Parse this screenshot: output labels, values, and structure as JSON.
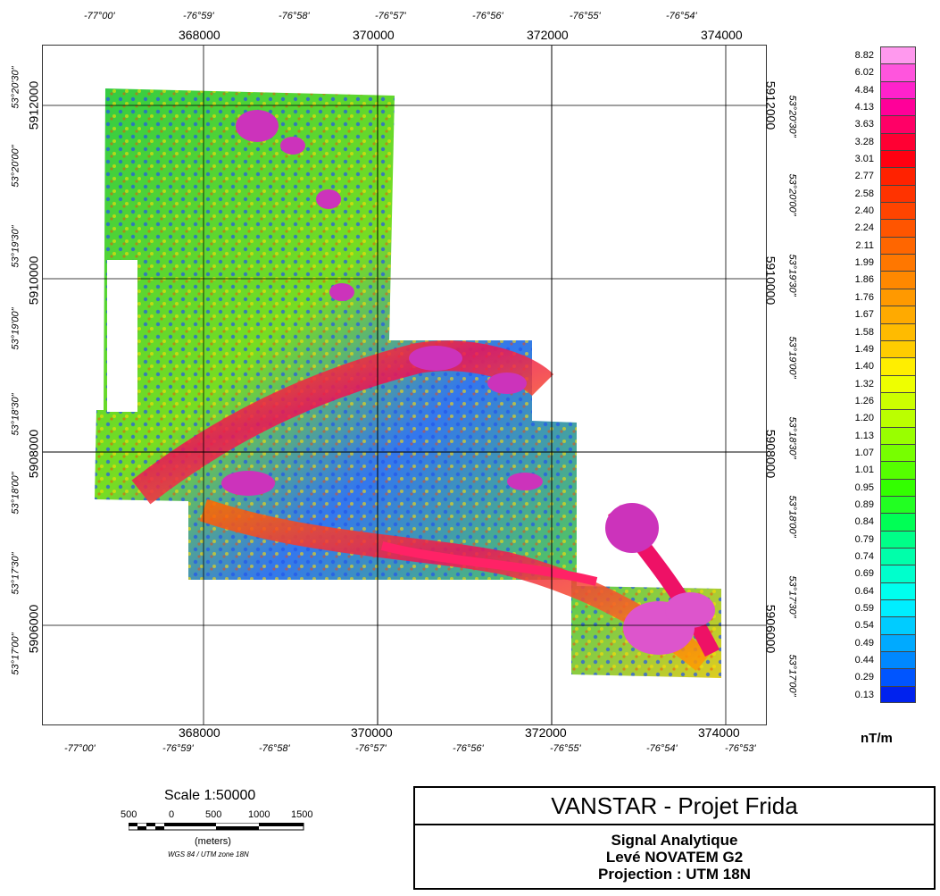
{
  "map": {
    "top_lon_labels": [
      "-77°00'",
      "-76°59'",
      "-76°58'",
      "-76°57'",
      "-76°56'",
      "-76°55'",
      "-76°54'"
    ],
    "bottom_lon_labels": [
      "-77°00'",
      "-76°59'",
      "-76°58'",
      "-76°57'",
      "-76°56'",
      "-76°55'",
      "-76°54'",
      "-76°53'"
    ],
    "top_easting_labels": [
      "368000",
      "370000",
      "372000",
      "374000"
    ],
    "bottom_easting_labels": [
      "368000",
      "370000",
      "372000",
      "374000"
    ],
    "left_lat_labels": [
      "53°20'30\"",
      "53°20'00\"",
      "53°19'30\"",
      "53°19'00\"",
      "53°18'30\"",
      "53°18'00\"",
      "53°17'30\"",
      "53°17'00\""
    ],
    "right_lat_labels": [
      "53°20'30\"",
      "53°20'00\"",
      "53°19'30\"",
      "53°19'00\"",
      "53°18'30\"",
      "53°18'00\"",
      "53°17'30\"",
      "53°17'00\""
    ],
    "left_northing_labels": [
      "5912000",
      "5910000",
      "5908000",
      "5906000"
    ],
    "right_northing_labels": [
      "5912000",
      "5910000",
      "5908000",
      "5906000"
    ]
  },
  "legend": {
    "values": [
      "8.82",
      "6.02",
      "4.84",
      "4.13",
      "3.63",
      "3.28",
      "3.01",
      "2.77",
      "2.58",
      "2.40",
      "2.24",
      "2.11",
      "1.99",
      "1.86",
      "1.76",
      "1.67",
      "1.58",
      "1.49",
      "1.40",
      "1.32",
      "1.26",
      "1.20",
      "1.13",
      "1.07",
      "1.01",
      "0.95",
      "0.89",
      "0.84",
      "0.79",
      "0.74",
      "0.69",
      "0.64",
      "0.59",
      "0.54",
      "0.49",
      "0.44",
      "0.29",
      "0.13"
    ],
    "colors": [
      "#ff99ee",
      "#ff55dd",
      "#ff22cc",
      "#ff0099",
      "#ff0066",
      "#ff0033",
      "#ff0011",
      "#ff2200",
      "#ff3300",
      "#ff4400",
      "#ff5500",
      "#ff6600",
      "#ff7700",
      "#ff8800",
      "#ff9900",
      "#ffaa00",
      "#ffbb00",
      "#ffcc00",
      "#ffee00",
      "#eeff00",
      "#ccff00",
      "#bbff00",
      "#99ff00",
      "#77ff00",
      "#55ff00",
      "#33ff00",
      "#22ff22",
      "#00ff55",
      "#00ff88",
      "#00ffaa",
      "#00ffcc",
      "#00ffee",
      "#00eeff",
      "#00ccff",
      "#00aaff",
      "#0088ff",
      "#0055ff",
      "#0022ee"
    ],
    "unit": "nT/m"
  },
  "scale": {
    "title": "Scale 1:50000",
    "ticks": [
      "500",
      "0",
      "500",
      "1000",
      "1500"
    ],
    "units": "(meters)",
    "datum": "WGS 84 / UTM zone 18N"
  },
  "title_block": {
    "main": "VANSTAR - Projet Frida",
    "line1": "Signal Analytique",
    "line2": "Levé NOVATEM G2",
    "line3": "Projection : UTM 18N"
  }
}
